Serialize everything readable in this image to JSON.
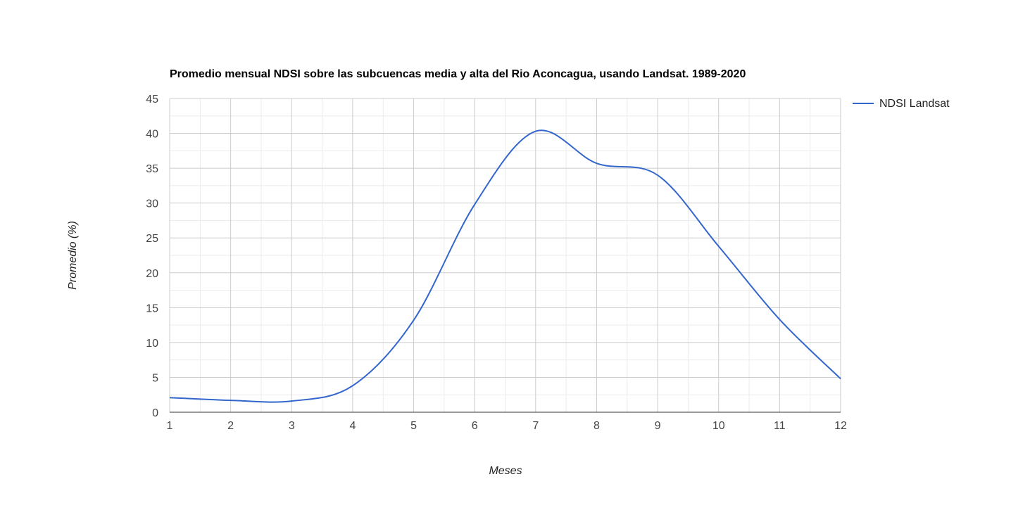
{
  "chart_data": {
    "type": "line",
    "title": "Promedio mensual NDSI sobre las subcuencas media y alta del Rio Aconcagua, usando Landsat. 1989-2020",
    "xlabel": "Meses",
    "ylabel": "Promedio (%)",
    "xlim": [
      1,
      12
    ],
    "ylim": [
      0,
      45
    ],
    "x_ticks": [
      "1",
      "2",
      "3",
      "4",
      "5",
      "6",
      "7",
      "8",
      "9",
      "10",
      "11",
      "12"
    ],
    "y_ticks": [
      "0",
      "5",
      "10",
      "15",
      "20",
      "25",
      "30",
      "35",
      "40",
      "45"
    ],
    "grid": true,
    "legend_position": "right",
    "smooth": true,
    "x": [
      1,
      2,
      3,
      4,
      5,
      6,
      7,
      8,
      9,
      10,
      11,
      12
    ],
    "series": [
      {
        "name": "NDSI Landsat",
        "color": "#3366cc",
        "values": [
          2.1,
          1.7,
          1.6,
          3.8,
          13.2,
          29.8,
          40.3,
          35.7,
          34.0,
          23.8,
          13.3,
          4.8
        ]
      }
    ]
  }
}
